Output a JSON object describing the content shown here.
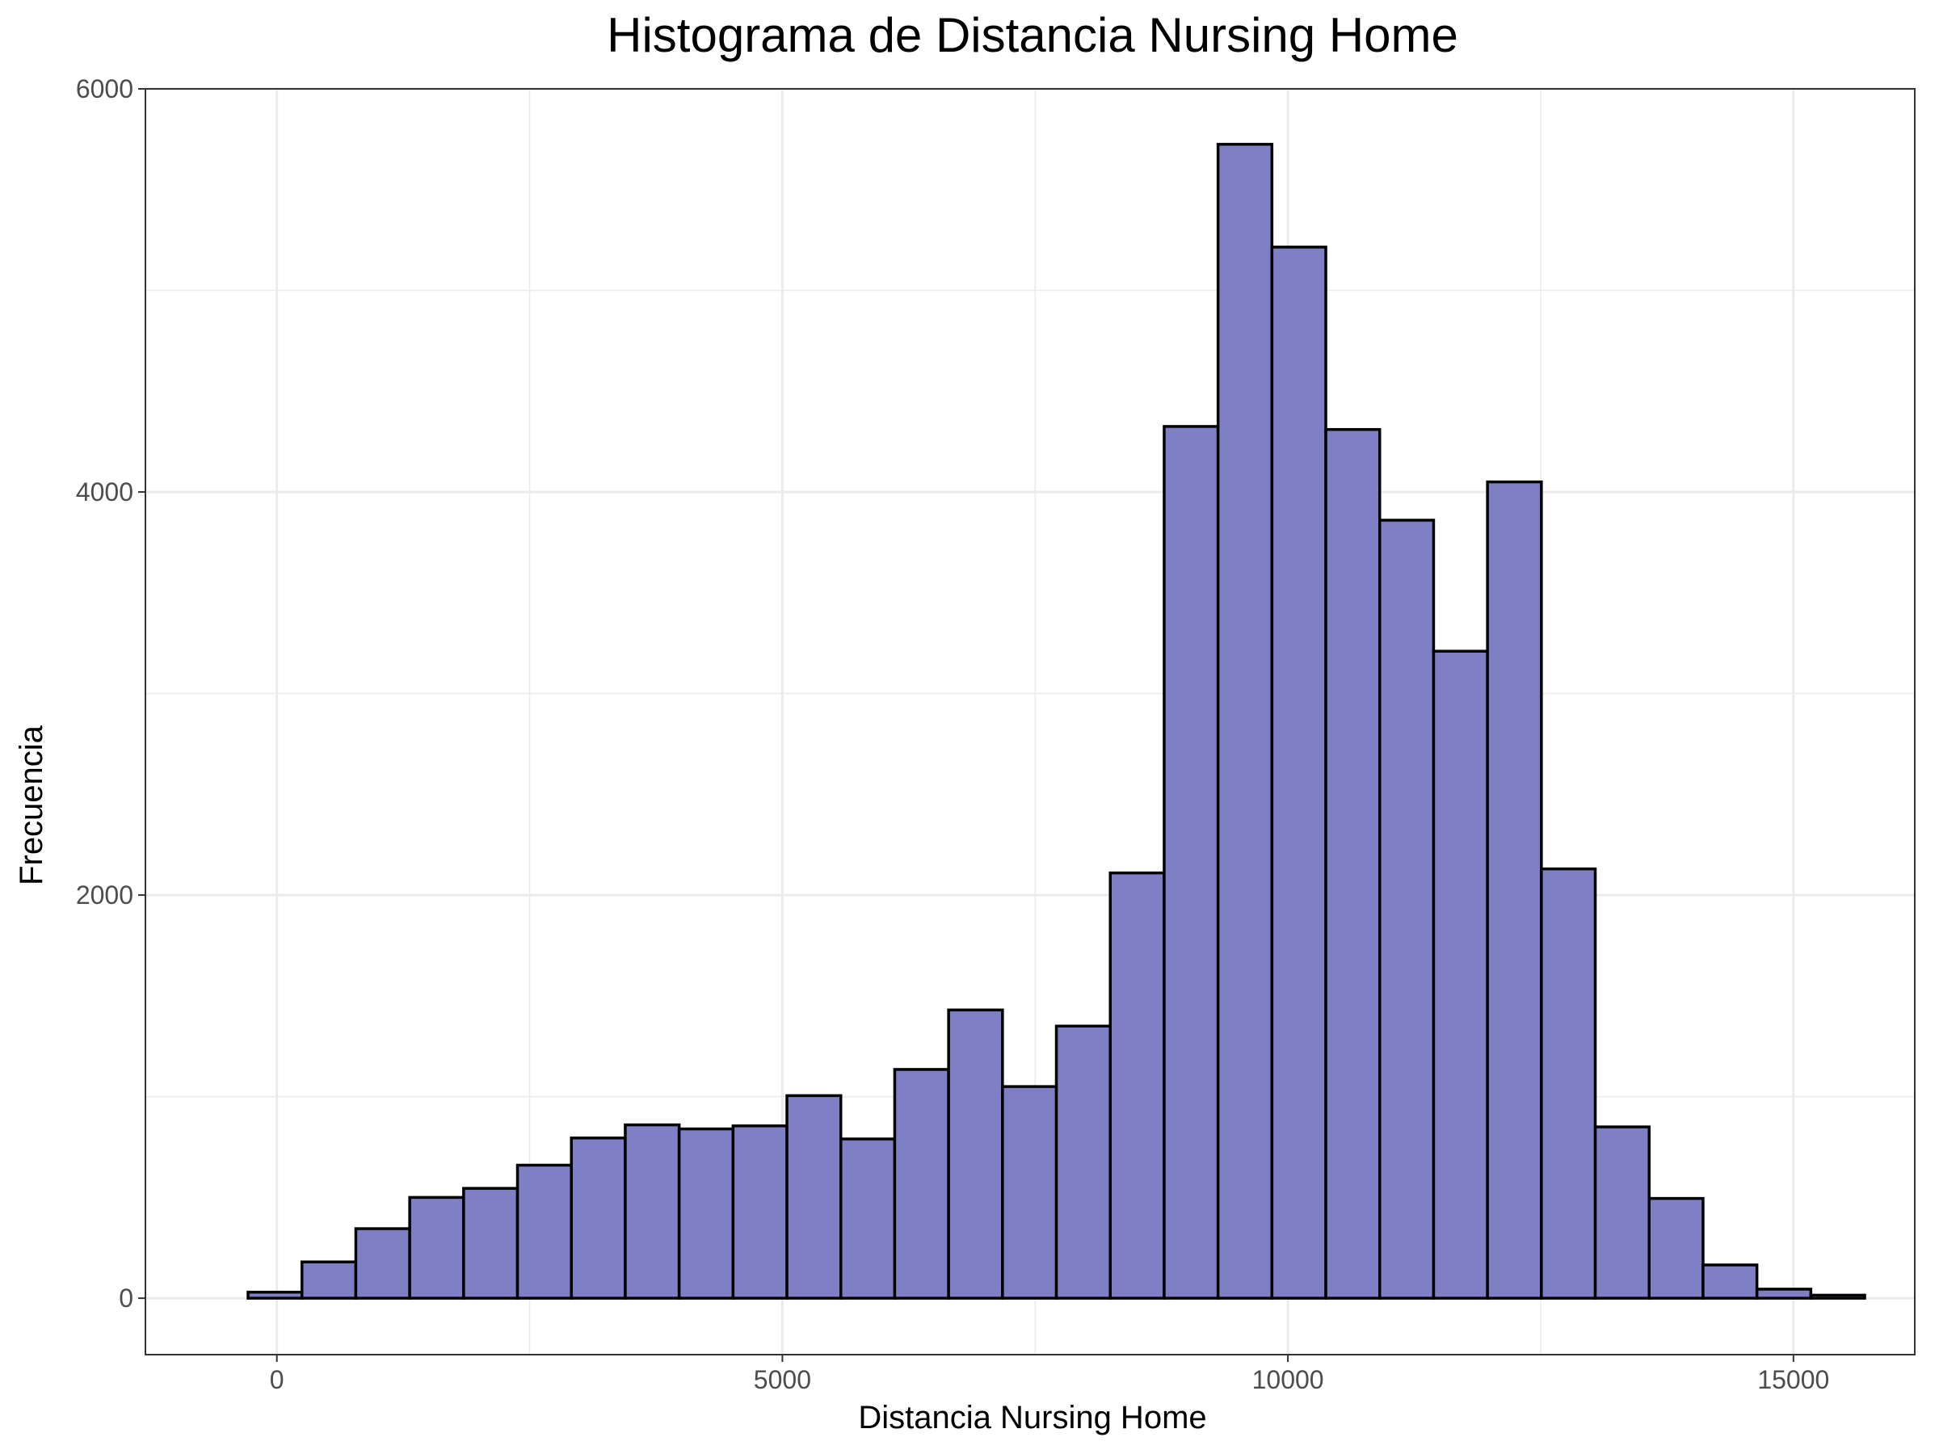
{
  "chart_data": {
    "type": "histogram",
    "title": "Histograma de Distancia Nursing Home",
    "xlabel": "Distancia Nursing Home",
    "ylabel": "Frecuencia",
    "xlim": [
      -1300,
      16200
    ],
    "ylim": [
      -280,
      6000
    ],
    "x_ticks": [
      0,
      5000,
      10000,
      15000
    ],
    "x_tick_labels": [
      "0",
      "5000",
      "10000",
      "15000"
    ],
    "y_ticks": [
      0,
      2000,
      4000,
      6000
    ],
    "y_tick_labels": [
      "0",
      "2000",
      "4000",
      "6000"
    ],
    "grid": true,
    "fill_color": "#7f7fc5",
    "edge_color": "#000000",
    "bins": [
      {
        "x0": -285,
        "x1": 248,
        "count": 30
      },
      {
        "x0": 248,
        "x1": 781,
        "count": 180
      },
      {
        "x0": 781,
        "x1": 1314,
        "count": 345
      },
      {
        "x0": 1314,
        "x1": 1847,
        "count": 500
      },
      {
        "x0": 1847,
        "x1": 2380,
        "count": 545
      },
      {
        "x0": 2380,
        "x1": 2913,
        "count": 660
      },
      {
        "x0": 2913,
        "x1": 3446,
        "count": 795
      },
      {
        "x0": 3446,
        "x1": 3979,
        "count": 860
      },
      {
        "x0": 3979,
        "x1": 4512,
        "count": 840
      },
      {
        "x0": 4512,
        "x1": 5045,
        "count": 855
      },
      {
        "x0": 5045,
        "x1": 5578,
        "count": 1005
      },
      {
        "x0": 5578,
        "x1": 6111,
        "count": 790
      },
      {
        "x0": 6111,
        "x1": 6644,
        "count": 1135
      },
      {
        "x0": 6644,
        "x1": 7177,
        "count": 1430
      },
      {
        "x0": 7177,
        "x1": 7710,
        "count": 1050
      },
      {
        "x0": 7710,
        "x1": 8243,
        "count": 1350
      },
      {
        "x0": 8243,
        "x1": 8776,
        "count": 2110
      },
      {
        "x0": 8776,
        "x1": 9309,
        "count": 4325
      },
      {
        "x0": 9309,
        "x1": 9842,
        "count": 5725
      },
      {
        "x0": 9842,
        "x1": 10375,
        "count": 5215
      },
      {
        "x0": 10375,
        "x1": 10908,
        "count": 4310
      },
      {
        "x0": 10908,
        "x1": 11441,
        "count": 3860
      },
      {
        "x0": 11441,
        "x1": 11974,
        "count": 3210
      },
      {
        "x0": 11974,
        "x1": 12507,
        "count": 4050
      },
      {
        "x0": 12507,
        "x1": 13040,
        "count": 2130
      },
      {
        "x0": 13040,
        "x1": 13573,
        "count": 850
      },
      {
        "x0": 13573,
        "x1": 14106,
        "count": 495
      },
      {
        "x0": 14106,
        "x1": 14639,
        "count": 165
      },
      {
        "x0": 14639,
        "x1": 15172,
        "count": 45
      },
      {
        "x0": 15172,
        "x1": 15705,
        "count": 15
      }
    ]
  }
}
